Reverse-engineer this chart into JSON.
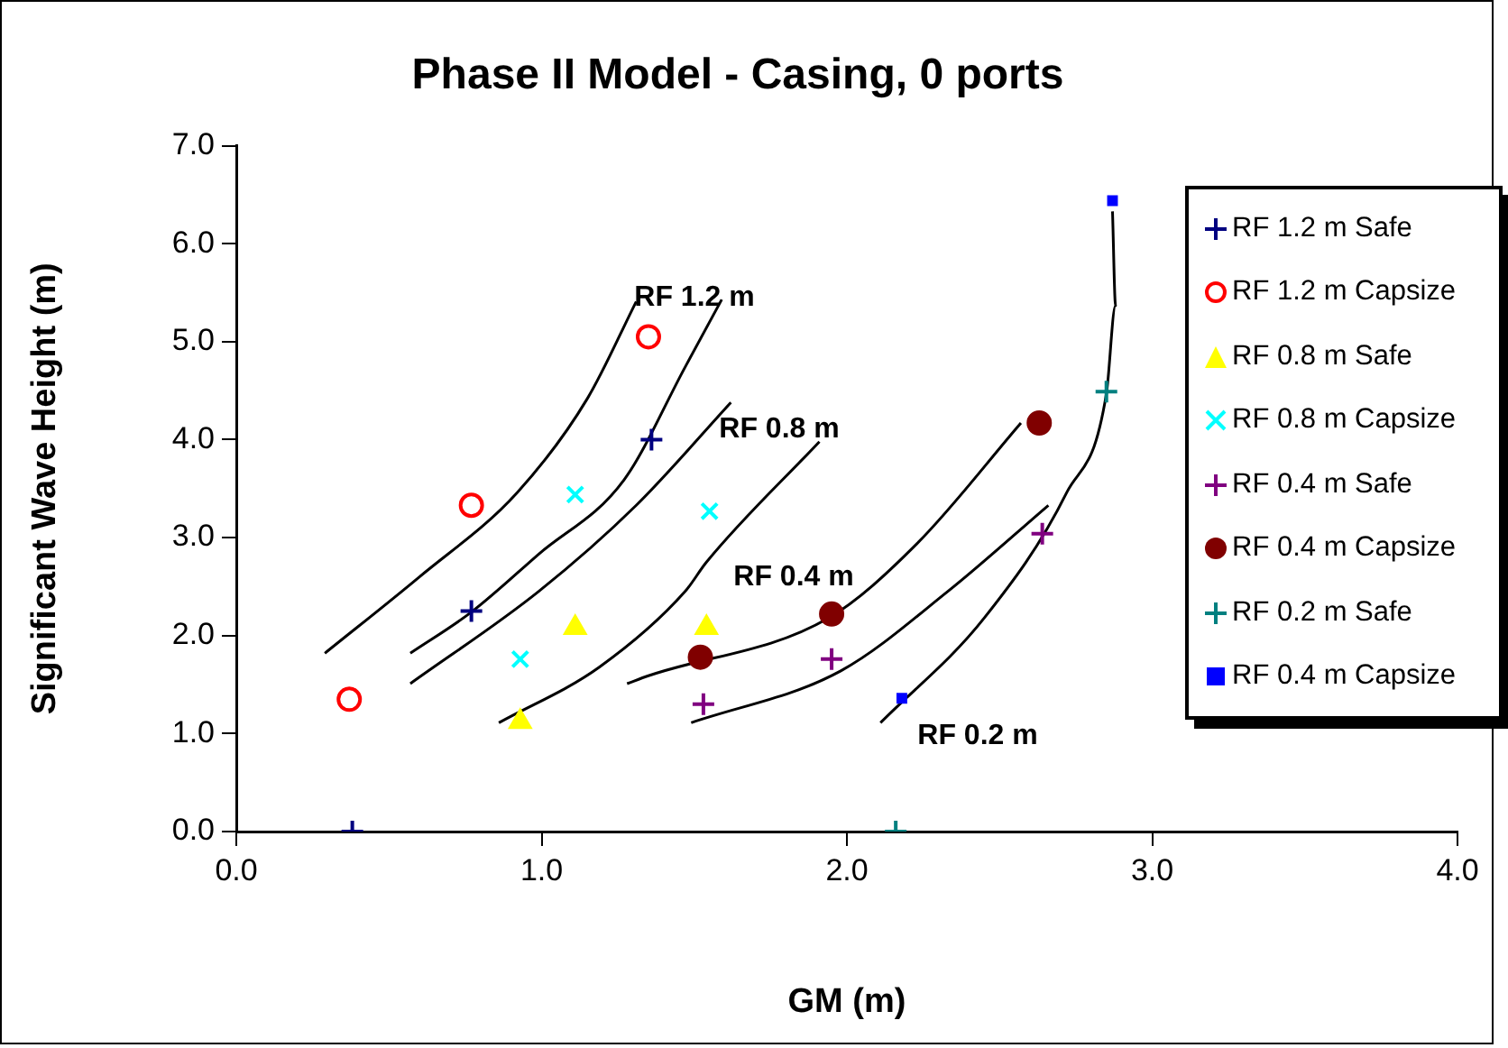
{
  "chart_data": {
    "type": "scatter",
    "title": "Phase II Model - Casing, 0 ports",
    "xlabel": "GM (m)",
    "ylabel": "Significant Wave Height (m)",
    "xlim": [
      0,
      4
    ],
    "ylim": [
      0,
      7
    ],
    "xticks": [
      {
        "value": 0,
        "label": "0.0"
      },
      {
        "value": 1,
        "label": "1.0"
      },
      {
        "value": 2,
        "label": "2.0"
      },
      {
        "value": 3,
        "label": "3.0"
      },
      {
        "value": 4,
        "label": "4.0"
      }
    ],
    "yticks": [
      {
        "value": 0,
        "label": "0.0"
      },
      {
        "value": 1,
        "label": "1.0"
      },
      {
        "value": 2,
        "label": "2.0"
      },
      {
        "value": 3,
        "label": "3.0"
      },
      {
        "value": 4,
        "label": "4.0"
      },
      {
        "value": 5,
        "label": "5.0"
      },
      {
        "value": 6,
        "label": "6.0"
      },
      {
        "value": 7,
        "label": "7.0"
      }
    ],
    "grid": false,
    "legend": "top right",
    "series": [
      {
        "name": "RF 1.2 m Safe",
        "color": "#000080",
        "marker": "cross",
        "x": [
          0.38,
          0.77,
          1.36
        ],
        "values": [
          0,
          2.25,
          4.0
        ]
      },
      {
        "name": "RF 1.2 m Capsize",
        "color": "#ff0000",
        "marker": "circle-open",
        "x": [
          0.37,
          0.77,
          1.35
        ],
        "values": [
          1.35,
          3.33,
          5.05
        ]
      },
      {
        "name": "RF 0.8 m Safe",
        "color": "#ffff00",
        "marker": "triangle",
        "x": [
          0.93,
          1.11,
          1.54
        ],
        "values": [
          1.12,
          2.08,
          2.08
        ]
      },
      {
        "name": "RF 0.8 m Capsize",
        "color": "#00ffff",
        "marker": "x",
        "x": [
          0.93,
          1.11,
          1.55
        ],
        "values": [
          1.76,
          3.44,
          3.27
        ]
      },
      {
        "name": "RF 0.4 m Safe",
        "color": "#800080",
        "marker": "cross",
        "x": [
          1.53,
          1.95,
          2.64
        ],
        "values": [
          1.3,
          1.76,
          3.04
        ]
      },
      {
        "name": "RF 0.4 m Capsize",
        "color": "#800000",
        "marker": "circle",
        "x": [
          1.52,
          1.95,
          2.63
        ],
        "values": [
          1.78,
          2.22,
          4.17
        ]
      },
      {
        "name": "RF 0.2 m Safe",
        "color": "#008080",
        "marker": "cross",
        "x": [
          2.16,
          2.85
        ],
        "values": [
          0,
          4.49
        ]
      },
      {
        "name": "RF 0.4 m Capsize",
        "color": "#0000ff",
        "marker": "square",
        "x": [
          2.18,
          2.87
        ],
        "values": [
          1.36,
          6.44
        ]
      },
      {
        "type": "line",
        "color": "#000000",
        "marker": "none",
        "x": [
          0.29,
          0.6,
          0.92,
          1.15,
          1.31
        ],
        "values": [
          1.82,
          2.6,
          3.46,
          4.42,
          5.41
        ]
      },
      {
        "type": "line",
        "color": "#000000",
        "marker": "none",
        "x": [
          0.57,
          0.77,
          0.99,
          1.27,
          1.47,
          1.59
        ],
        "values": [
          1.82,
          2.24,
          2.83,
          3.59,
          4.74,
          5.43
        ]
      },
      {
        "type": "line",
        "color": "#000000",
        "marker": "none",
        "x": [
          0.57,
          0.99,
          1.31,
          1.62
        ],
        "values": [
          1.51,
          2.45,
          3.33,
          4.38
        ]
      },
      {
        "type": "line",
        "color": "#000000",
        "marker": "none",
        "x": [
          0.86,
          1.19,
          1.47,
          1.54,
          1.91
        ],
        "values": [
          1.11,
          1.68,
          2.45,
          2.75,
          3.98
        ]
      },
      {
        "type": "line",
        "color": "#000000",
        "marker": "none",
        "x": [
          1.28,
          1.35,
          1.94,
          2.23,
          2.57
        ],
        "values": [
          1.51,
          1.59,
          2.18,
          2.94,
          4.17
        ]
      },
      {
        "type": "line",
        "color": "#000000",
        "marker": "none",
        "x": [
          1.49,
          1.98,
          2.33,
          2.66
        ],
        "values": [
          1.11,
          1.64,
          2.45,
          3.33
        ]
      },
      {
        "type": "line",
        "color": "#000000",
        "marker": "none",
        "x": [
          2.11,
          2.45,
          2.72,
          2.85,
          2.88,
          2.87
        ],
        "values": [
          1.11,
          2.18,
          3.46,
          4.47,
          5.37,
          6.33
        ]
      }
    ],
    "annotations": [
      "RF 1.2 m",
      "RF 0.8 m",
      "RF 0.4 m",
      "RF 0.2 m"
    ]
  }
}
